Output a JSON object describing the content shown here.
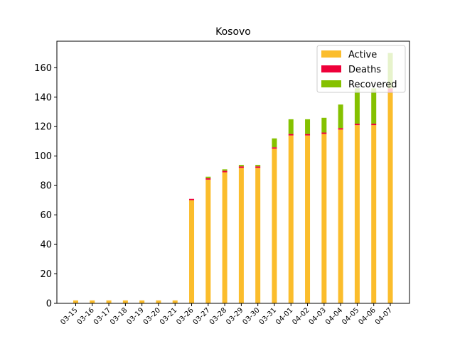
{
  "chart_data": {
    "type": "bar",
    "stacked": true,
    "title": "Kosovo",
    "xlabel": "",
    "ylabel": "",
    "ylim": [
      0,
      178
    ],
    "yticks": [
      0,
      20,
      40,
      60,
      80,
      100,
      120,
      140,
      160
    ],
    "categories": [
      "03-15",
      "03-16",
      "03-17",
      "03-18",
      "03-19",
      "03-20",
      "03-21",
      "03-26",
      "03-27",
      "03-28",
      "03-29",
      "03-30",
      "03-31",
      "04-01",
      "04-02",
      "04-03",
      "04-04",
      "04-05",
      "04-06",
      "04-07"
    ],
    "series": [
      {
        "name": "Active",
        "color": "#fbbd2c",
        "values": [
          2,
          2,
          2,
          2,
          2,
          2,
          2,
          70,
          84,
          89,
          92,
          92,
          105,
          114,
          114,
          115,
          118,
          121,
          121,
          143
        ]
      },
      {
        "name": "Deaths",
        "color": "#ee0039",
        "values": [
          0,
          0,
          0,
          0,
          0,
          0,
          0,
          1,
          1,
          1,
          1,
          1,
          1,
          1,
          1,
          1,
          1,
          1,
          1,
          3
        ]
      },
      {
        "name": "Recovered",
        "color": "#85c100",
        "values": [
          0,
          0,
          0,
          0,
          0,
          0,
          0,
          0,
          1,
          1,
          1,
          1,
          6,
          10,
          10,
          10,
          16,
          24,
          24,
          24
        ]
      }
    ],
    "grid": false,
    "legend": "top-right"
  }
}
